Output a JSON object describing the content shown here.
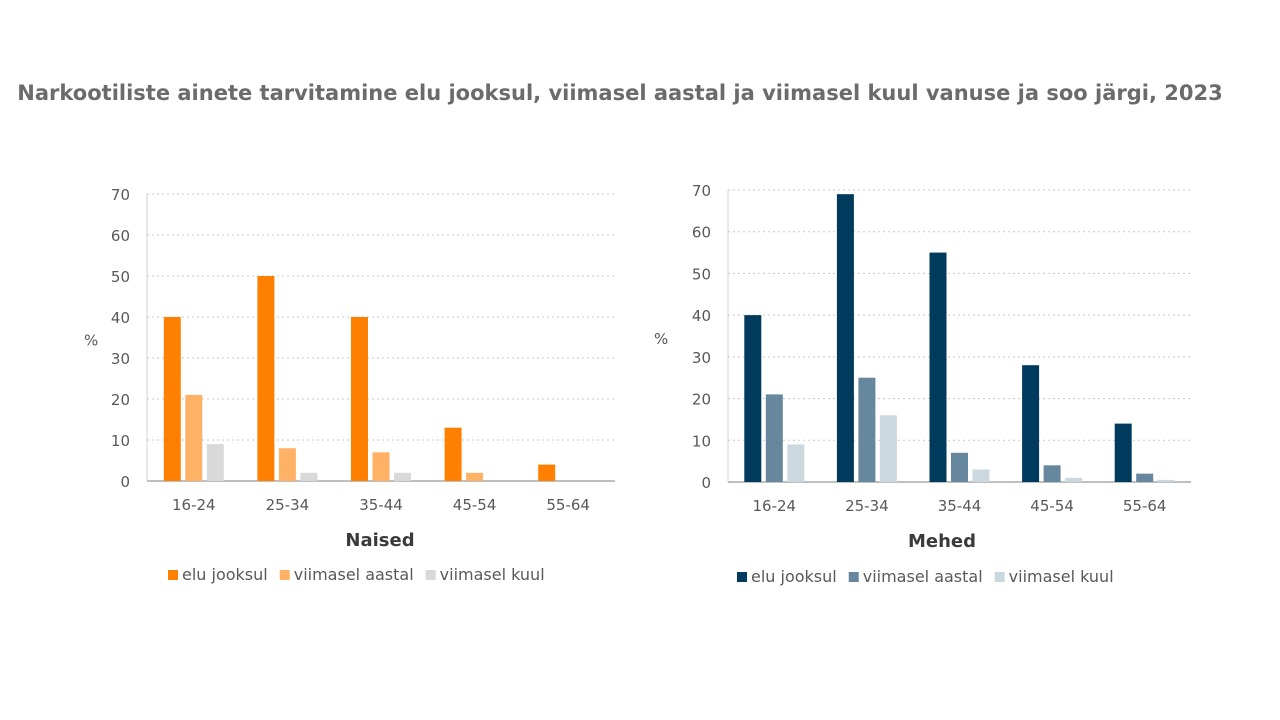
{
  "chart_data": [
    {
      "type": "bar",
      "title": "Narkootiliste ainete tarvitamine elu jooksul, viimasel aastal ja viimasel kuul vanuse ja soo järgi, 2023",
      "subtitle": "Naised",
      "ylabel": "%",
      "ylim": [
        0,
        70
      ],
      "yticks": [
        0,
        10,
        20,
        30,
        40,
        50,
        60,
        70
      ],
      "grid": true,
      "legend_position": "bottom",
      "categories": [
        "16-24",
        "25-34",
        "35-44",
        "45-54",
        "55-64"
      ],
      "series": [
        {
          "name": "elu jooksul",
          "color": "#FF8000",
          "values": [
            40,
            50,
            40,
            13,
            4
          ]
        },
        {
          "name": "viimasel aastal",
          "color": "#FFB266",
          "values": [
            21,
            8,
            7,
            2,
            0
          ]
        },
        {
          "name": "viimasel kuul",
          "color": "#D9D9D9",
          "values": [
            9,
            2,
            2,
            0,
            0
          ]
        }
      ]
    },
    {
      "type": "bar",
      "subtitle": "Mehed",
      "ylabel": "%",
      "ylim": [
        0,
        70
      ],
      "yticks": [
        0,
        10,
        20,
        30,
        40,
        50,
        60,
        70
      ],
      "grid": true,
      "legend_position": "bottom",
      "categories": [
        "16-24",
        "25-34",
        "35-44",
        "45-54",
        "55-64"
      ],
      "series": [
        {
          "name": "elu jooksul",
          "color": "#003A5D",
          "values": [
            40,
            69,
            55,
            28,
            14
          ]
        },
        {
          "name": "viimasel aastal",
          "color": "#66879E",
          "values": [
            21,
            25,
            7,
            4,
            2
          ]
        },
        {
          "name": "viimasel kuul",
          "color": "#CCD8DF",
          "values": [
            9,
            16,
            3,
            1,
            0.5
          ]
        }
      ]
    }
  ]
}
